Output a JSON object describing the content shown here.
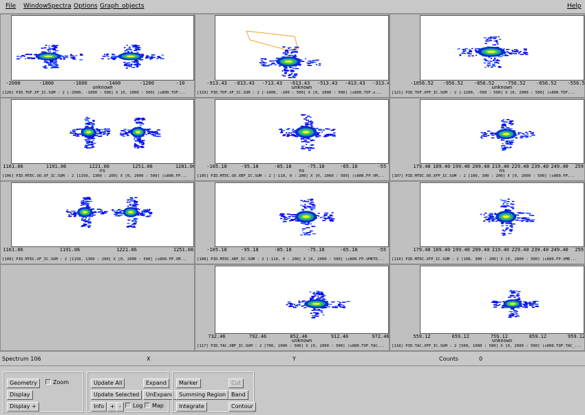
{
  "menu": [
    "File",
    "Window",
    "Spectra",
    "Options",
    "Graph_objects"
  ],
  "help": "Help",
  "panels": [
    {
      "ticks": [
        "-2000",
        "-1800",
        "-1600",
        "-1400",
        "-1200",
        "-10"
      ],
      "axis_label": "unknown",
      "caption": "[120] PID.TOF.XF_IC.SUM : 2 [-2000, -1000 : 500] X [0, 2000 : 500] (s800.TOF..."
    },
    {
      "ticks": [
        "-913.43",
        "-813.43",
        "-713.43",
        "-613.43",
        "-513.43",
        "-413.43",
        "-313.43"
      ],
      "axis_label": "unknown",
      "caption": "[119] PID.TOF.XF_IC.SUM : 2 [-1000, -200 : 500] X [0, 2000 : 500] (s800.TOF.o..."
    },
    {
      "ticks": [
        "-1056.52",
        "-956.52",
        "-856.52",
        "-756.52",
        "-656.52",
        "-556.52"
      ],
      "axis_label": "unknown",
      "caption": "[121] PID.TOF.XFP_IC.SUM : 2 [-1200, -500 : 500] X [0, 2000 : 500] (s800.TOF..."
    },
    {
      "ticks": [
        "1161.06",
        "1191.06",
        "1221.06",
        "1251.06",
        "1281.06"
      ],
      "axis_label": "ns",
      "caption": "[106] PID.MTDC.OO.XF_IC.SUM : 2 [1150, 1300 : 200] X [0, 2000 : 500] (s800.FP..."
    },
    {
      "ticks": [
        "-105.18",
        "-95.18",
        "-85.18",
        "-75.18",
        "-65.18",
        "-55"
      ],
      "axis_label": "ns",
      "caption": "[105] PID.MTDC.OO.XBF_IC.SUM : 2 [-110, 0 : 200] X [0, 2000 : 500] (s800.FP.VM..."
    },
    {
      "ticks": [
        "179.40",
        "189.40",
        "199.40",
        "209.40",
        "219.40",
        "229.40",
        "239.40",
        "249.40",
        "259"
      ],
      "axis_label": "ns",
      "caption": "[107] PID.MTDC.OO.XFP_IC.SUM : 2 [100, 300 : 200] X [0, 2000 : 500] (s800.FP..."
    },
    {
      "ticks": [
        "1161.06",
        "1191.06",
        "1221.06",
        "1251.06"
      ],
      "caption": "[109] PID.MTDC.XF_IC.SUM : 2 [1150, 1300 : 200] X [0, 2000 : 500] (s800.FP.VM..."
    },
    {
      "ticks": [
        "-105.18",
        "-95.18",
        "-85.18",
        "-75.18",
        "-65.18",
        "-55"
      ],
      "caption": "[108] PID.MTDC.XBF_IC.SUM : 2 [-110, 0 : 200] X [0, 2000 : 500] (s800.FP.VMETD..."
    },
    {
      "ticks": [
        "179.40",
        "189.40",
        "199.40",
        "209.40",
        "219.40",
        "229.40",
        "239.40",
        "249.40",
        "259"
      ],
      "caption": "[110] PID.MTDC.XFP_IC.SUM : 2 [100, 300 : 200] X [0, 2000 : 500] (s800.FP.VME..."
    },
    {
      "ticks": [
        "732.46",
        "792.46",
        "852.46",
        "912.46",
        "972.46"
      ],
      "axis_label": "unknown",
      "caption": "[117] PID.TAC.XBF_IC.SUM : 2 [700, 1000 : 500] X [0, 2000 : 500] (s800.TOF.TAC..."
    },
    {
      "ticks": [
        "559.12",
        "659.12",
        "759.12",
        "859.12",
        "959.12"
      ],
      "axis_label": "unknown",
      "caption": "[118] PID.TAC.XFP_IC.SUM : 2 [500, 1000 : 500] X [0, 2000 : 500] (s800.TOF.TAC_..."
    }
  ],
  "status": {
    "spectrum": "Spectrum 106",
    "x": "X",
    "y": "Y",
    "counts_label": "Counts",
    "counts": "0"
  },
  "buttons": {
    "geometry": "Geometry",
    "zoom": "Zoom",
    "display": "Display",
    "display_plus": "Display +",
    "update_all": "Update All",
    "expand": "Expand",
    "update_selected": "Update Selected",
    "unexpand": "UnExpand",
    "info": "Info",
    "plus": "+",
    "minus": "-",
    "log": "Log",
    "map": "Map",
    "marker": "Marker",
    "cut": "Cut",
    "summing_region": "Summing Region",
    "band": "Band",
    "integrate": "Integrate",
    "contour": "Contour"
  }
}
